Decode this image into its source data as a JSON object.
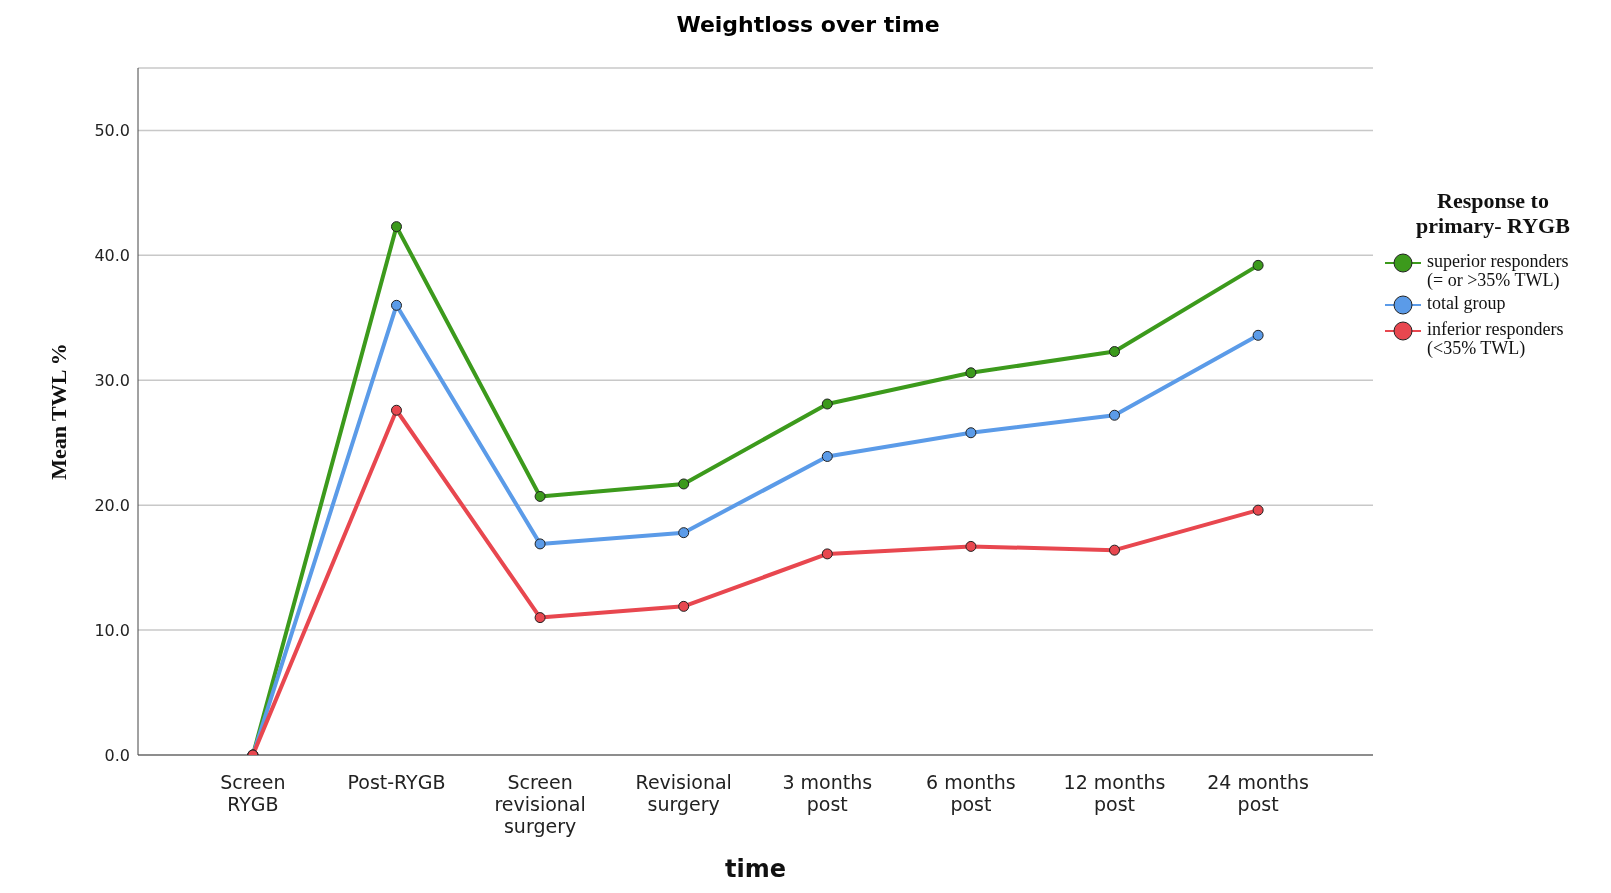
{
  "chart_data": {
    "type": "line",
    "title": "Weightloss over time",
    "xlabel": "time",
    "ylabel": "Mean TWL %",
    "legend_title": "Response to primary- RYGB",
    "categories": [
      "Screen RYGB",
      "Post-RYGB",
      "Screen revisional surgery",
      "Revisional surgery",
      "3 months post",
      "6 months post",
      "12 months post",
      "24 months post"
    ],
    "series": [
      {
        "name": "superior responders (= or >35% TWL)",
        "color": "#3c9a1c",
        "values": [
          0,
          42.3,
          20.7,
          21.7,
          28.1,
          30.6,
          32.3,
          39.2
        ]
      },
      {
        "name": "total group",
        "color": "#5b9be8",
        "values": [
          0,
          36.0,
          16.9,
          17.8,
          23.9,
          25.8,
          27.2,
          33.6
        ]
      },
      {
        "name": "inferior responders (<35% TWL)",
        "color": "#e8474f",
        "values": [
          0,
          27.6,
          11.0,
          11.9,
          16.1,
          16.7,
          16.4,
          19.6
        ]
      }
    ],
    "ylim": [
      0,
      55
    ],
    "yticks": [
      {
        "value": 0,
        "label": "0.0"
      },
      {
        "value": 10,
        "label": "10.0"
      },
      {
        "value": 20,
        "label": "20.0"
      },
      {
        "value": 30,
        "label": "30.0"
      },
      {
        "value": 40,
        "label": "40.0"
      },
      {
        "value": 50,
        "label": "50.0"
      }
    ],
    "grid": "y",
    "legend": "right",
    "marker": "circle",
    "line_style": "solid"
  }
}
